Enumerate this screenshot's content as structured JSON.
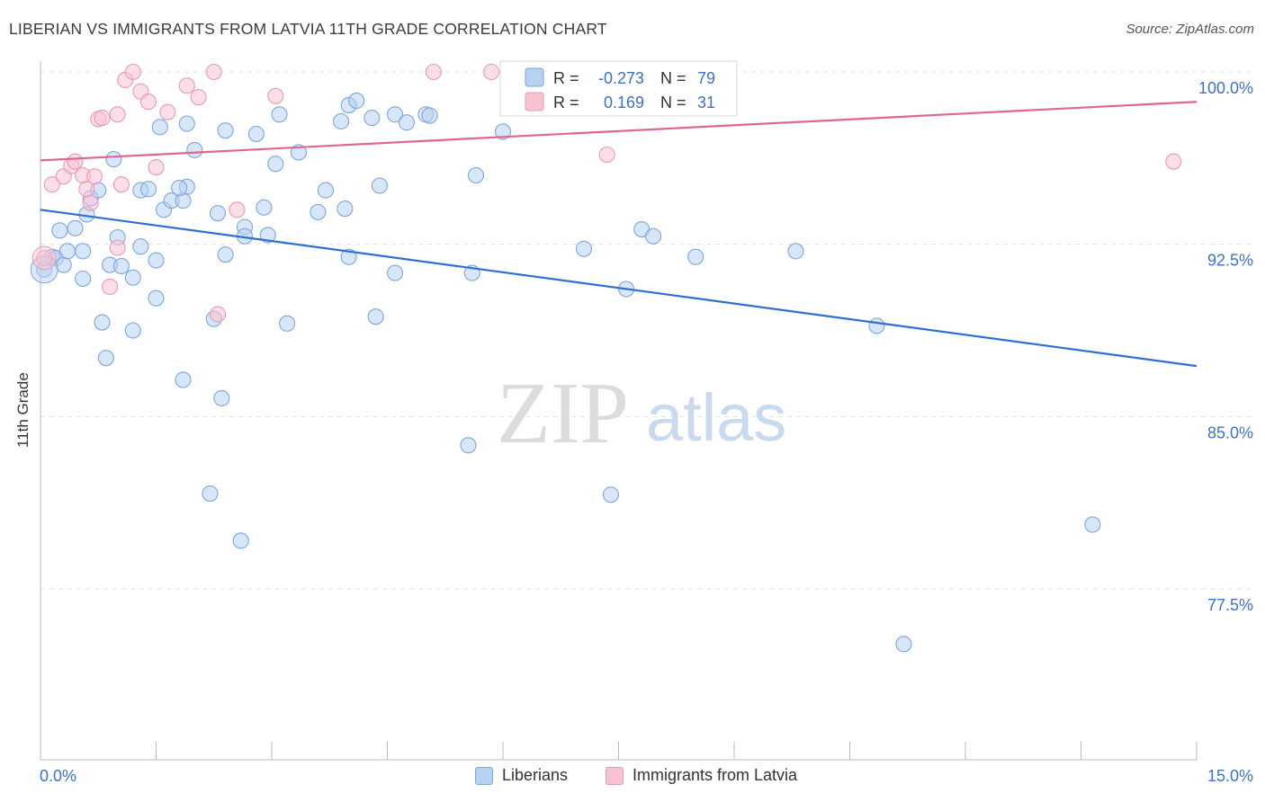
{
  "title": "LIBERIAN VS IMMIGRANTS FROM LATVIA 11TH GRADE CORRELATION CHART",
  "source": "Source: ZipAtlas.com",
  "watermark": {
    "zip": "ZIP",
    "atlas": "atlas"
  },
  "colors": {
    "blue_fill": "#b7d1f2",
    "blue_stroke": "#7ea6dc",
    "blue_line": "#2f6fcf",
    "pink_fill": "#f7c3d3",
    "pink_stroke": "#e79bb3",
    "pink_line": "#e06890",
    "axis_label": "#3d72c8",
    "grid": "#e3e3e3"
  },
  "legend": {
    "rows": [
      {
        "r_label": "R =",
        "r_value": "-0.273",
        "n_label": "N =",
        "n_value": "79"
      },
      {
        "r_label": "R =",
        "r_value": "0.169",
        "n_label": "N =",
        "n_value": "31"
      }
    ]
  },
  "chart_data": {
    "type": "scatter",
    "title": "LIBERIAN VS IMMIGRANTS FROM LATVIA 11TH GRADE CORRELATION CHART",
    "xlabel": "",
    "ylabel": "11th Grade",
    "xlim": [
      0,
      15
    ],
    "ylim": [
      70.5,
      101.2
    ],
    "x_tick_labels": [
      "0.0%",
      "15.0%"
    ],
    "y_ticks": [
      77.5,
      85.0,
      92.5,
      100.0
    ],
    "y_tick_labels": [
      "77.5%",
      "85.0%",
      "92.5%",
      "100.0%"
    ],
    "grid": "horizontal dashed",
    "legend_position": "top-center",
    "series": [
      {
        "name": "Liberians",
        "color": "#b7d1f2",
        "trend": {
          "x": [
            0,
            15
          ],
          "y": [
            94.0,
            87.2
          ]
        },
        "points": [
          [
            0.05,
            91.4
          ],
          [
            0.15,
            91.95
          ],
          [
            0.2,
            91.9
          ],
          [
            0.3,
            91.6
          ],
          [
            0.25,
            93.1
          ],
          [
            0.45,
            93.2
          ],
          [
            0.55,
            92.2
          ],
          [
            0.35,
            92.2
          ],
          [
            0.6,
            93.8
          ],
          [
            0.65,
            94.5
          ],
          [
            0.75,
            94.85
          ],
          [
            0.55,
            91.0
          ],
          [
            0.9,
            91.6
          ],
          [
            1.05,
            91.55
          ],
          [
            1.2,
            91.05
          ],
          [
            1.0,
            92.8
          ],
          [
            1.3,
            92.4
          ],
          [
            1.5,
            91.8
          ],
          [
            1.3,
            94.85
          ],
          [
            1.4,
            94.9
          ],
          [
            1.6,
            94.0
          ],
          [
            1.7,
            94.4
          ],
          [
            1.85,
            94.4
          ],
          [
            1.9,
            95.0
          ],
          [
            0.95,
            96.2
          ],
          [
            2.0,
            96.6
          ],
          [
            1.55,
            97.6
          ],
          [
            1.9,
            97.75
          ],
          [
            2.4,
            97.45
          ],
          [
            2.8,
            97.3
          ],
          [
            3.05,
            96.0
          ],
          [
            3.35,
            96.5
          ],
          [
            3.1,
            98.15
          ],
          [
            3.9,
            97.85
          ],
          [
            4.0,
            98.55
          ],
          [
            4.1,
            98.75
          ],
          [
            4.3,
            98.0
          ],
          [
            4.6,
            98.15
          ],
          [
            4.75,
            97.8
          ],
          [
            5.0,
            98.15
          ],
          [
            5.05,
            98.1
          ],
          [
            4.4,
            95.05
          ],
          [
            3.7,
            94.85
          ],
          [
            3.6,
            93.9
          ],
          [
            3.95,
            94.05
          ],
          [
            2.3,
            93.85
          ],
          [
            2.65,
            93.25
          ],
          [
            2.9,
            94.1
          ],
          [
            2.95,
            92.9
          ],
          [
            2.4,
            92.05
          ],
          [
            4.0,
            91.95
          ],
          [
            4.6,
            91.25
          ],
          [
            5.65,
            95.5
          ],
          [
            5.6,
            91.25
          ],
          [
            0.8,
            89.1
          ],
          [
            1.2,
            88.75
          ],
          [
            1.5,
            90.15
          ],
          [
            0.85,
            87.55
          ],
          [
            2.25,
            89.25
          ],
          [
            3.2,
            89.05
          ],
          [
            4.35,
            89.35
          ],
          [
            1.85,
            86.6
          ],
          [
            2.35,
            85.8
          ],
          [
            5.55,
            83.75
          ],
          [
            7.05,
            92.3
          ],
          [
            7.6,
            90.55
          ],
          [
            7.8,
            93.15
          ],
          [
            7.95,
            92.85
          ],
          [
            8.5,
            91.95
          ],
          [
            9.8,
            92.2
          ],
          [
            10.85,
            88.95
          ],
          [
            2.2,
            81.65
          ],
          [
            2.6,
            79.6
          ],
          [
            7.4,
            81.6
          ],
          [
            13.65,
            80.3
          ],
          [
            11.2,
            75.1
          ],
          [
            6.0,
            97.4
          ],
          [
            2.65,
            92.85
          ],
          [
            1.8,
            94.95
          ]
        ]
      },
      {
        "name": "Immigrants from Latvia",
        "color": "#f7c3d3",
        "trend": {
          "x": [
            0,
            15
          ],
          "y": [
            96.15,
            98.7
          ]
        },
        "points": [
          [
            0.05,
            91.9
          ],
          [
            0.15,
            95.1
          ],
          [
            0.3,
            95.45
          ],
          [
            0.4,
            95.9
          ],
          [
            0.45,
            96.1
          ],
          [
            0.55,
            95.5
          ],
          [
            0.65,
            94.3
          ],
          [
            0.7,
            95.45
          ],
          [
            0.75,
            97.95
          ],
          [
            0.8,
            98.0
          ],
          [
            1.0,
            98.15
          ],
          [
            1.1,
            99.65
          ],
          [
            1.2,
            100.0
          ],
          [
            1.3,
            99.15
          ],
          [
            1.4,
            98.7
          ],
          [
            1.5,
            95.85
          ],
          [
            1.65,
            98.25
          ],
          [
            1.9,
            99.4
          ],
          [
            2.05,
            98.9
          ],
          [
            2.25,
            100.0
          ],
          [
            2.55,
            94.0
          ],
          [
            3.05,
            98.95
          ],
          [
            5.1,
            100.0
          ],
          [
            5.85,
            100.0
          ],
          [
            7.35,
            96.4
          ],
          [
            14.7,
            96.1
          ],
          [
            0.9,
            90.65
          ],
          [
            1.0,
            92.35
          ],
          [
            2.3,
            89.45
          ],
          [
            0.6,
            94.9
          ],
          [
            1.05,
            95.1
          ]
        ]
      }
    ]
  }
}
